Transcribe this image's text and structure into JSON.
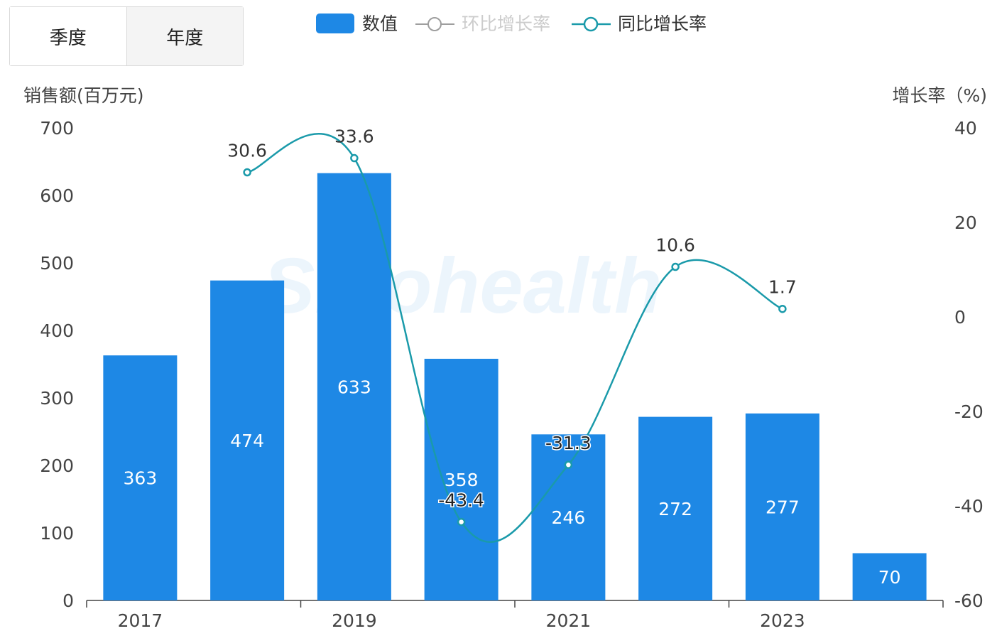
{
  "tabs": [
    {
      "label": "季度",
      "active": true
    },
    {
      "label": "年度",
      "active": false
    }
  ],
  "colors": {
    "bar": "#1e88e5",
    "line": "#1a9aaa",
    "qoq": "#9e9e9e",
    "axis": "#444444"
  },
  "chart_data": {
    "type": "bar",
    "legend": [
      {
        "key": "bar",
        "label": "数值",
        "active": true
      },
      {
        "key": "qoq",
        "label": "环比增长率",
        "active": false
      },
      {
        "key": "yoy",
        "label": "同比增长率",
        "active": true
      }
    ],
    "left_axis_title": "销售额(百万元)",
    "right_axis_title": "增长率（%)",
    "x_tick_labels": [
      "2017",
      "2019",
      "2021",
      "2023"
    ],
    "left_ticks": [
      0,
      100,
      200,
      300,
      400,
      500,
      600,
      700
    ],
    "right_ticks": [
      -60,
      -40,
      -20,
      0,
      20,
      40
    ],
    "left_ylim": [
      0,
      700
    ],
    "right_ylim": [
      -60,
      40
    ],
    "bars": [
      363,
      474,
      633,
      358,
      246,
      272,
      277,
      70
    ],
    "bar_labels": [
      "363",
      "474",
      "633",
      "358",
      "246",
      "272",
      "277",
      "70"
    ],
    "yoy_series": {
      "name": "同比增长率",
      "values": [
        null,
        30.6,
        33.6,
        -43.4,
        -31.3,
        10.6,
        1.7,
        null
      ],
      "labels": [
        null,
        "30.6",
        "33.6",
        "-43.4",
        "-31.3",
        "10.6",
        "1.7",
        null
      ]
    },
    "grid": false
  }
}
